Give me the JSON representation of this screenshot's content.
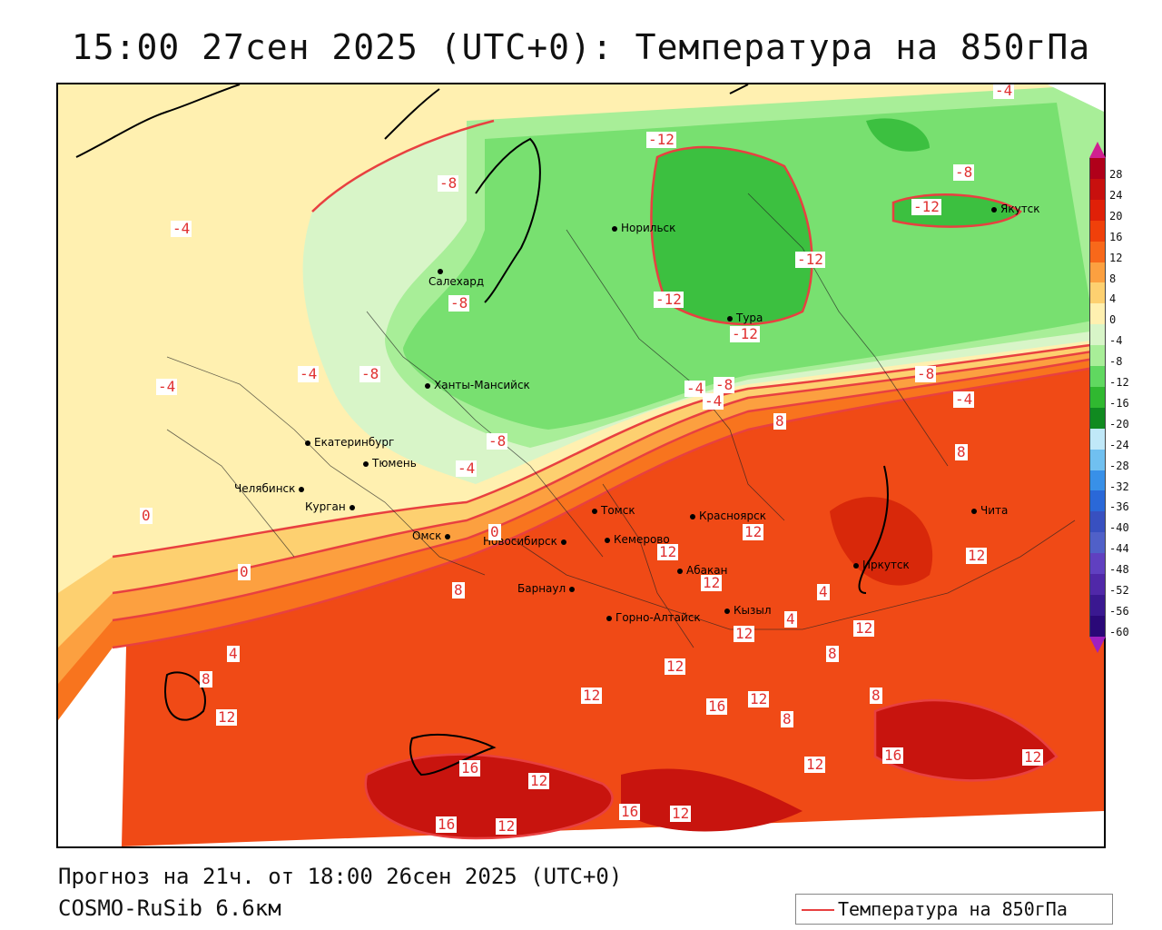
{
  "title": "15:00 27сен 2025 (UTC+0): Температура на 850гПа",
  "footer": {
    "forecast": "Прогноз на 21ч. от 18:00 26сен 2025 (UTC+0)",
    "model": "COSMO-RuSib 6.6км"
  },
  "legend": {
    "label": "Температура на 850гПа",
    "line_color": "#e84040"
  },
  "colorbar": {
    "labels": [
      "28",
      "24",
      "20",
      "16",
      "12",
      "8",
      "4",
      "0",
      "-4",
      "-8",
      "-12",
      "-16",
      "-20",
      "-24",
      "-28",
      "-32",
      "-36",
      "-40",
      "-44",
      "-48",
      "-52",
      "-56",
      "-60"
    ],
    "colors": [
      "#b0001a",
      "#c8100e",
      "#e02008",
      "#f0400a",
      "#f8681a",
      "#fca040",
      "#fdd070",
      "#fff0b0",
      "#d8f5c8",
      "#a8ee98",
      "#60d860",
      "#30b830",
      "#108a20",
      "#c0e8f8",
      "#70c0f0",
      "#3890e8",
      "#2a68d8",
      "#3850c0",
      "#5060c8",
      "#6040c0",
      "#5028a8",
      "#3a1890",
      "#2a0878"
    ],
    "top_color": "#d02090",
    "bottom_color": "#a020c0"
  },
  "cities": [
    {
      "name": "Норильск"
    },
    {
      "name": "Якутск"
    },
    {
      "name": "Салехард"
    },
    {
      "name": "Тура"
    },
    {
      "name": "Ханты-Мансийск"
    },
    {
      "name": "Екатеринбург"
    },
    {
      "name": "Тюмень"
    },
    {
      "name": "Челябинск"
    },
    {
      "name": "Курган"
    },
    {
      "name": "Омск"
    },
    {
      "name": "Томск"
    },
    {
      "name": "Красноярск"
    },
    {
      "name": "Новосибирск"
    },
    {
      "name": "Кемерово"
    },
    {
      "name": "Абакан"
    },
    {
      "name": "Барнаул"
    },
    {
      "name": "Иркутск"
    },
    {
      "name": "Чита"
    },
    {
      "name": "Кызыл"
    },
    {
      "name": "Горно-Алтайск"
    }
  ],
  "temp_labels": [
    "-4",
    "-12",
    "-8",
    "-4",
    "-8",
    "-12",
    "-12",
    "-8",
    "-12",
    "-12",
    "-4",
    "-4",
    "-8",
    "-4",
    "-8",
    "-8",
    "-4",
    "8",
    "-8",
    "-4",
    "-4",
    "8",
    "0",
    "0",
    "0",
    "4",
    "12",
    "12",
    "12",
    "8",
    "12",
    "8",
    "4",
    "4",
    "12",
    "8",
    "12",
    "12",
    "16",
    "12",
    "8",
    "12",
    "16",
    "12",
    "12",
    "16",
    "12",
    "16",
    "12",
    "16",
    "12",
    "8",
    "12"
  ]
}
